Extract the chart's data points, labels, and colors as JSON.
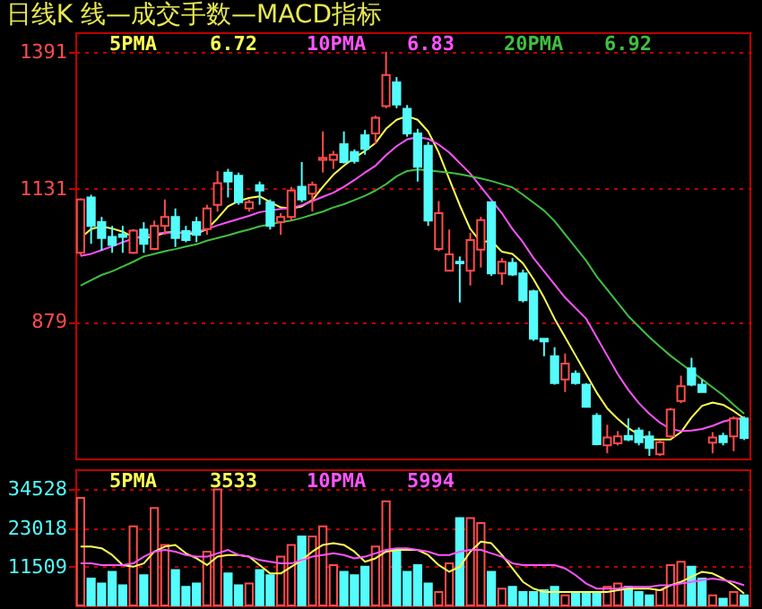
{
  "chart_data": [
    {
      "type": "candlestick",
      "title": "日线K  线—成交手数—MACD指标",
      "categories": [
        null,
        null,
        null,
        null,
        null,
        null,
        null,
        null,
        null,
        null,
        null,
        null,
        null,
        null,
        null,
        null,
        null,
        null,
        null,
        null,
        null,
        null,
        null,
        null,
        null,
        null,
        null,
        null,
        null,
        null,
        null,
        null,
        null,
        null,
        null,
        null,
        null,
        null,
        null,
        null,
        null,
        null,
        null,
        null,
        null,
        null,
        null,
        null,
        null,
        null,
        null,
        null,
        null,
        null,
        null,
        null,
        null,
        null,
        null,
        null,
        null,
        null,
        null,
        null
      ],
      "ohlc": [
        [
          1010,
          1113,
          1005,
          1111
        ],
        [
          1115,
          1120,
          1027,
          1061
        ],
        [
          1068,
          1078,
          1014,
          1038
        ],
        [
          1040,
          1061,
          1010,
          1025
        ],
        [
          1045,
          1061,
          1010,
          1040
        ],
        [
          1010,
          1055,
          1008,
          1052
        ],
        [
          1054,
          1068,
          1010,
          1027
        ],
        [
          1017,
          1071,
          1015,
          1061
        ],
        [
          1061,
          1111,
          1044,
          1078
        ],
        [
          1078,
          1094,
          1021,
          1038
        ],
        [
          1051,
          1061,
          1030,
          1034
        ],
        [
          1068,
          1078,
          1030,
          1044
        ],
        [
          1055,
          1101,
          1044,
          1094
        ],
        [
          1101,
          1165,
          1088,
          1142
        ],
        [
          1162,
          1169,
          1115,
          1145
        ],
        [
          1156,
          1162,
          1101,
          1106
        ],
        [
          1094,
          1111,
          1088,
          1106
        ],
        [
          1138,
          1145,
          1101,
          1128
        ],
        [
          1106,
          1111,
          1054,
          1061
        ],
        [
          1068,
          1085,
          1044,
          1078
        ],
        [
          1078,
          1135,
          1071,
          1128
        ],
        [
          1135,
          1182,
          1106,
          1111
        ],
        [
          1122,
          1145,
          1088,
          1139
        ],
        [
          1186,
          1240,
          1162,
          1190
        ],
        [
          1186,
          1203,
          1169,
          1196
        ],
        [
          1216,
          1240,
          1179,
          1182
        ],
        [
          1201,
          1206,
          1179,
          1184
        ],
        [
          1233,
          1243,
          1196,
          1207
        ],
        [
          1236,
          1270,
          1216,
          1266
        ],
        [
          1288,
          1391,
          1284,
          1347
        ],
        [
          1333,
          1343,
          1284,
          1291
        ],
        [
          1283,
          1290,
          1230,
          1236
        ],
        [
          1236,
          1245,
          1145,
          1173
        ],
        [
          1213,
          1220,
          1061,
          1071
        ],
        [
          1017,
          1108,
          1013,
          1085
        ],
        [
          976,
          1054,
          976,
          1007
        ],
        [
          993,
          1003,
          916,
          990
        ],
        [
          976,
          1048,
          948,
          1034
        ],
        [
          1016,
          1078,
          982,
          1072
        ],
        [
          1106,
          1106,
          966,
          971
        ],
        [
          971,
          1000,
          949,
          993
        ],
        [
          991,
          1000,
          966,
          969
        ],
        [
          971,
          978,
          916,
          920
        ],
        [
          937,
          940,
          843,
          847
        ],
        [
          847,
          847,
          814,
          842
        ],
        [
          814,
          831,
          760,
          763
        ],
        [
          770,
          819,
          746,
          800
        ],
        [
          781,
          787,
          760,
          763
        ],
        [
          760,
          763,
          718,
          718
        ],
        [
          701,
          706,
          645,
          647
        ],
        [
          645,
          684,
          630,
          660
        ],
        [
          649,
          672,
          645,
          662
        ],
        [
          663,
          696,
          653,
          656
        ],
        [
          673,
          679,
          645,
          651
        ],
        [
          662,
          672,
          625,
          640
        ],
        [
          628,
          655,
          625,
          651
        ],
        [
          662,
          716,
          660,
          713
        ],
        [
          729,
          777,
          725,
          757
        ],
        [
          791,
          811,
          757,
          760
        ],
        [
          760,
          770,
          746,
          746
        ],
        [
          650,
          670,
          630,
          660
        ],
        [
          663,
          669,
          645,
          651
        ],
        [
          662,
          700,
          634,
          696
        ],
        [
          696,
          700,
          655,
          659
        ]
      ],
      "colors": [
        "#ff4c4c",
        "#54fcfc",
        "#54fcfc",
        "#54fcfc",
        "#54fcfc",
        "#ff4c4c",
        "#54fcfc",
        "#ff4c4c",
        "#ff4c4c",
        "#54fcfc",
        "#54fcfc",
        "#54fcfc",
        "#ff4c4c",
        "#ff4c4c",
        "#54fcfc",
        "#54fcfc",
        "#ff4c4c",
        "#54fcfc",
        "#54fcfc",
        "#ff4c4c",
        "#ff4c4c",
        "#54fcfc",
        "#ff4c4c",
        "#ff4c4c",
        "#ff4c4c",
        "#54fcfc",
        "#54fcfc",
        "#54fcfc",
        "#ff4c4c",
        "#ff4c4c",
        "#54fcfc",
        "#54fcfc",
        "#54fcfc",
        "#54fcfc",
        "#ff4c4c",
        "#ff4c4c",
        "#54fcfc",
        "#ff4c4c",
        "#ff4c4c",
        "#54fcfc",
        "#ff4c4c",
        "#54fcfc",
        "#54fcfc",
        "#54fcfc",
        "#54fcfc",
        "#54fcfc",
        "#ff4c4c",
        "#54fcfc",
        "#54fcfc",
        "#54fcfc",
        "#ff4c4c",
        "#ff4c4c",
        "#54fcfc",
        "#54fcfc",
        "#54fcfc",
        "#ff4c4c",
        "#ff4c4c",
        "#ff4c4c",
        "#54fcfc",
        "#54fcfc",
        "#ff4c4c",
        "#54fcfc",
        "#ff4c4c",
        "#54fcfc"
      ],
      "series": [
        {
          "name": "5PMA",
          "type": "line",
          "color": "#ffff54",
          "values": [
            1038,
            1055,
            1060,
            1056,
            1050,
            1040,
            1038,
            1041,
            1048,
            1050,
            1046,
            1046,
            1055,
            1075,
            1098,
            1108,
            1114,
            1117,
            1106,
            1096,
            1094,
            1098,
            1110,
            1135,
            1158,
            1175,
            1190,
            1203,
            1218,
            1245,
            1262,
            1269,
            1262,
            1240,
            1200,
            1150,
            1100,
            1055,
            1030,
            1033,
            1012,
            1008,
            990,
            960,
            925,
            885,
            850,
            815,
            780,
            745,
            715,
            695,
            678,
            665,
            656,
            656,
            656,
            670,
            698,
            720,
            726,
            722,
            710,
            696
          ]
        },
        {
          "name": "10PMA",
          "type": "line",
          "color": "#ff54ff",
          "values": [
            1004,
            1008,
            1015,
            1022,
            1030,
            1037,
            1042,
            1046,
            1048,
            1048,
            1048,
            1050,
            1055,
            1062,
            1068,
            1074,
            1080,
            1087,
            1090,
            1093,
            1095,
            1100,
            1108,
            1116,
            1124,
            1135,
            1148,
            1162,
            1175,
            1195,
            1212,
            1225,
            1229,
            1226,
            1215,
            1200,
            1180,
            1160,
            1135,
            1110,
            1085,
            1055,
            1030,
            1000,
            975,
            950,
            925,
            905,
            885,
            850,
            815,
            780,
            750,
            725,
            705,
            688,
            676,
            672,
            673,
            676,
            682,
            690,
            695,
            696
          ]
        },
        {
          "name": "20PMA",
          "type": "line",
          "color": "#40c040",
          "values": [
            948,
            958,
            968,
            975,
            984,
            993,
            1003,
            1008,
            1013,
            1017,
            1022,
            1026,
            1033,
            1038,
            1043,
            1049,
            1054,
            1060,
            1064,
            1068,
            1071,
            1076,
            1082,
            1088,
            1096,
            1102,
            1110,
            1118,
            1128,
            1140,
            1155,
            1165,
            1168,
            1166,
            1164,
            1162,
            1159,
            1155,
            1151,
            1146,
            1140,
            1134,
            1120,
            1105,
            1090,
            1070,
            1045,
            1020,
            995,
            965,
            940,
            915,
            890,
            870,
            850,
            832,
            815,
            800,
            785,
            770,
            755,
            740,
            722,
            705
          ]
        }
      ],
      "annotations": [
        "6.72",
        "6.83",
        "6.92"
      ],
      "ylim": [
        620,
        1428
      ],
      "yticks": [
        1391,
        1131,
        879
      ],
      "grid": "y",
      "legend": "top left",
      "tick_labels": "y"
    },
    {
      "type": "bar",
      "categories": [
        null,
        null,
        null,
        null,
        null,
        null,
        null,
        null,
        null,
        null,
        null,
        null,
        null,
        null,
        null,
        null,
        null,
        null,
        null,
        null,
        null,
        null,
        null,
        null,
        null,
        null,
        null,
        null,
        null,
        null,
        null,
        null,
        null,
        null,
        null,
        null,
        null,
        null,
        null,
        null,
        null,
        null,
        null,
        null,
        null,
        null,
        null,
        null,
        null,
        null,
        null,
        null,
        null,
        null,
        null,
        null,
        null,
        null,
        null,
        null,
        null,
        null,
        null,
        null
      ],
      "series": [
        {
          "type": "bar",
          "values": [
            32000,
            8000,
            6500,
            10000,
            6000,
            23500,
            9000,
            29000,
            18000,
            10500,
            5500,
            6500,
            16000,
            34500,
            9500,
            6000,
            6500,
            10500,
            9000,
            14500,
            18000,
            20500,
            20500,
            23500,
            12000,
            10000,
            9000,
            11500,
            17500,
            31000,
            16500,
            10000,
            12000,
            6500,
            4000,
            12500,
            26000,
            26000,
            24500,
            10000,
            5000,
            5500,
            4000,
            4000,
            4500,
            5500,
            3000,
            4000,
            3500,
            4000,
            5500,
            6500,
            5500,
            4000,
            3000,
            4500,
            12000,
            13000,
            11500,
            8000,
            3000,
            2000,
            4000,
            3000
          ],
          "colors": [
            "#ff4c4c",
            "#54fcfc",
            "#54fcfc",
            "#54fcfc",
            "#54fcfc",
            "#ff4c4c",
            "#54fcfc",
            "#ff4c4c",
            "#ff4c4c",
            "#54fcfc",
            "#54fcfc",
            "#54fcfc",
            "#ff4c4c",
            "#ff4c4c",
            "#54fcfc",
            "#54fcfc",
            "#ff4c4c",
            "#54fcfc",
            "#54fcfc",
            "#ff4c4c",
            "#ff4c4c",
            "#54fcfc",
            "#ff4c4c",
            "#ff4c4c",
            "#ff4c4c",
            "#54fcfc",
            "#54fcfc",
            "#54fcfc",
            "#ff4c4c",
            "#ff4c4c",
            "#54fcfc",
            "#54fcfc",
            "#54fcfc",
            "#54fcfc",
            "#ff4c4c",
            "#ff4c4c",
            "#54fcfc",
            "#ff4c4c",
            "#ff4c4c",
            "#54fcfc",
            "#ff4c4c",
            "#54fcfc",
            "#54fcfc",
            "#54fcfc",
            "#54fcfc",
            "#54fcfc",
            "#ff4c4c",
            "#54fcfc",
            "#54fcfc",
            "#54fcfc",
            "#ff4c4c",
            "#ff4c4c",
            "#54fcfc",
            "#54fcfc",
            "#54fcfc",
            "#ff4c4c",
            "#ff4c4c",
            "#ff4c4c",
            "#54fcfc",
            "#54fcfc",
            "#ff4c4c",
            "#54fcfc",
            "#ff4c4c",
            "#54fcfc"
          ]
        },
        {
          "name": "5PMA",
          "type": "line",
          "color": "#ffff54",
          "values": [
            17500,
            17500,
            17000,
            15000,
            12000,
            11500,
            12500,
            16000,
            17500,
            18000,
            15500,
            14000,
            12000,
            14500,
            15000,
            15000,
            14500,
            12000,
            9500,
            9500,
            11500,
            13500,
            16000,
            18000,
            18500,
            18000,
            16000,
            13000,
            14000,
            16000,
            16500,
            16500,
            16500,
            15000,
            12000,
            10000,
            11500,
            16000,
            19000,
            18500,
            15000,
            11000,
            7000,
            5000,
            4000,
            4000,
            4000,
            4000,
            4000,
            4000,
            4000,
            4500,
            5000,
            5000,
            5000,
            4500,
            6000,
            7000,
            8500,
            10000,
            9500,
            8000,
            6000,
            3533
          ]
        },
        {
          "name": "10PMA",
          "type": "line",
          "color": "#ff54ff",
          "values": [
            12500,
            12500,
            12000,
            12000,
            12000,
            12500,
            14500,
            16000,
            16500,
            16000,
            15000,
            14500,
            14500,
            15500,
            16500,
            15000,
            14500,
            13500,
            13000,
            12500,
            12500,
            13500,
            14500,
            15000,
            15500,
            15000,
            14000,
            14500,
            15500,
            16500,
            17000,
            17000,
            16500,
            16000,
            15000,
            15000,
            16000,
            16500,
            16500,
            15500,
            14500,
            12500,
            12000,
            12000,
            12000,
            12000,
            11000,
            9000,
            6500,
            5000,
            5000,
            5000,
            5500,
            5500,
            5500,
            6000,
            6000,
            6500,
            7000,
            7500,
            8000,
            7500,
            7000,
            5994
          ]
        }
      ],
      "annotations": [
        "3533",
        "5994"
      ],
      "ylim": [
        0,
        40500
      ],
      "yticks": [
        11509,
        23018,
        34528
      ],
      "grid": "y",
      "legend": "top left",
      "tick_labels": "y"
    }
  ]
}
